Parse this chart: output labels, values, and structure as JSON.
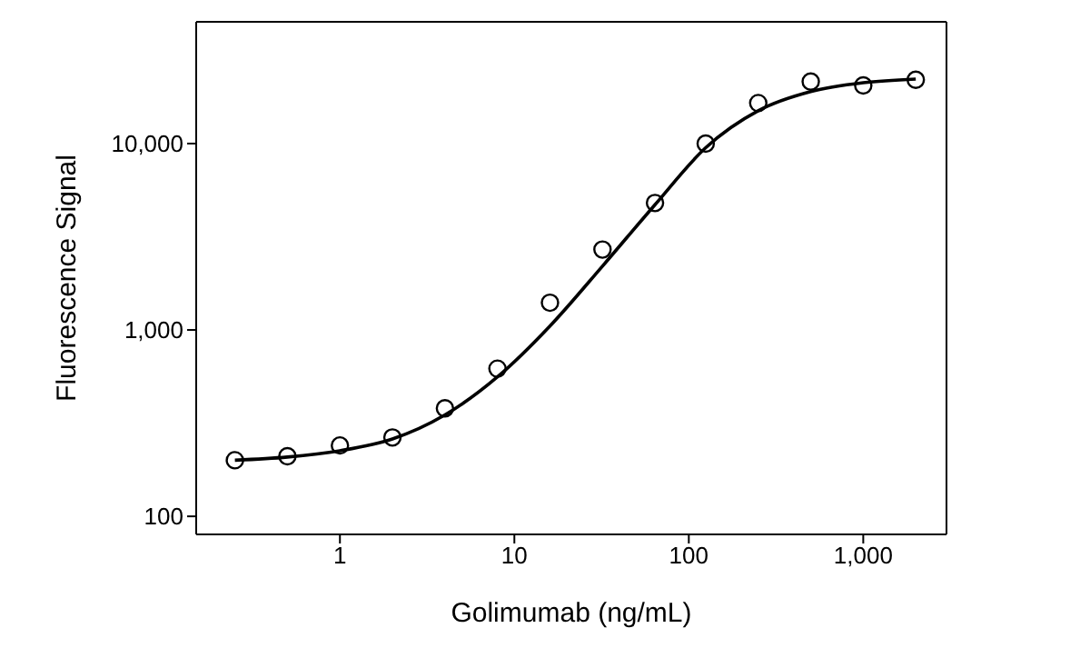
{
  "chart_data": {
    "type": "scatter",
    "xlabel": "Golimumab (ng/mL)",
    "ylabel": "Fluorescence Signal",
    "x": [
      0.25,
      0.5,
      1,
      2,
      4,
      8,
      16,
      32,
      64,
      125,
      250,
      500,
      1000,
      2000
    ],
    "series": [
      {
        "color": "#000000",
        "marker": "circle",
        "values": [
          200,
          210,
          240,
          265,
          380,
          620,
          1400,
          2700,
          4800,
          10000,
          16500,
          21500,
          20500,
          22000
        ]
      },
      {
        "type": "line",
        "color": "#000000",
        "marker": "none",
        "line_style": "solid",
        "x": [
          0.25,
          0.5,
          1,
          2,
          4,
          8,
          16,
          32,
          64,
          125,
          250,
          500,
          1000,
          2000
        ],
        "values": [
          200,
          208,
          225,
          260,
          350,
          560,
          1050,
          2200,
          4700,
          9500,
          15000,
          19000,
          21200,
          22200
        ]
      }
    ],
    "log": "xy",
    "xlim": [
      0.15,
      3000
    ],
    "ylim": [
      80,
      45000
    ],
    "xticks": [
      1,
      10,
      100,
      {
        "value": 1000,
        "label": "1,000"
      }
    ],
    "yticks": [
      100,
      {
        "value": 1000,
        "label": "1,000"
      },
      {
        "value": 10000,
        "label": "10,000"
      }
    ],
    "grid": false
  }
}
